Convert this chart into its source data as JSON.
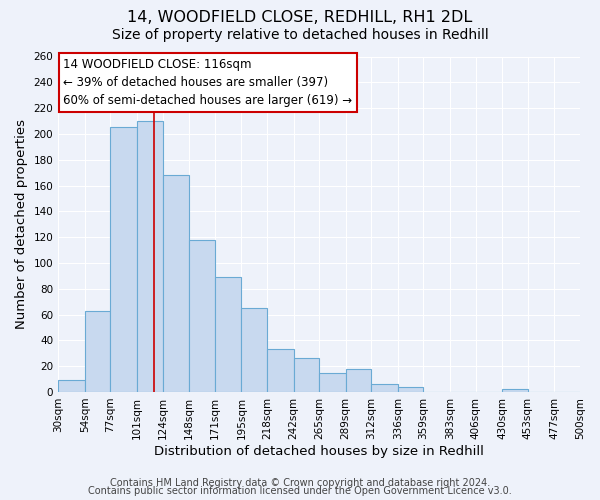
{
  "title_line1": "14, WOODFIELD CLOSE, REDHILL, RH1 2DL",
  "title_line2": "Size of property relative to detached houses in Redhill",
  "xlabel": "Distribution of detached houses by size in Redhill",
  "ylabel": "Number of detached properties",
  "footer_line1": "Contains HM Land Registry data © Crown copyright and database right 2024.",
  "footer_line2": "Contains public sector information licensed under the Open Government Licence v3.0.",
  "bin_edges": [
    30,
    54,
    77,
    101,
    124,
    148,
    171,
    195,
    218,
    242,
    265,
    289,
    312,
    336,
    359,
    383,
    406,
    430,
    453,
    477,
    500
  ],
  "bin_labels": [
    "30sqm",
    "54sqm",
    "77sqm",
    "101sqm",
    "124sqm",
    "148sqm",
    "171sqm",
    "195sqm",
    "218sqm",
    "242sqm",
    "265sqm",
    "289sqm",
    "312sqm",
    "336sqm",
    "359sqm",
    "383sqm",
    "406sqm",
    "430sqm",
    "453sqm",
    "477sqm",
    "500sqm"
  ],
  "counts": [
    9,
    63,
    205,
    210,
    168,
    118,
    89,
    65,
    33,
    26,
    15,
    18,
    6,
    4,
    0,
    0,
    0,
    2,
    0,
    0
  ],
  "bar_color": "#c8d9ef",
  "bar_edge_color": "#6aaad4",
  "property_line_x": 116,
  "property_line_color": "#cc0000",
  "annotation_text_line1": "14 WOODFIELD CLOSE: 116sqm",
  "annotation_text_line2": "← 39% of detached houses are smaller (397)",
  "annotation_text_line3": "60% of semi-detached houses are larger (619) →",
  "ylim": [
    0,
    260
  ],
  "yticks": [
    0,
    20,
    40,
    60,
    80,
    100,
    120,
    140,
    160,
    180,
    200,
    220,
    240,
    260
  ],
  "background_color": "#eef2fa",
  "grid_color": "#ffffff",
  "title1_fontsize": 11.5,
  "title2_fontsize": 10,
  "axis_label_fontsize": 9.5,
  "tick_fontsize": 7.5,
  "annot_fontsize": 8.5,
  "footer_fontsize": 7
}
